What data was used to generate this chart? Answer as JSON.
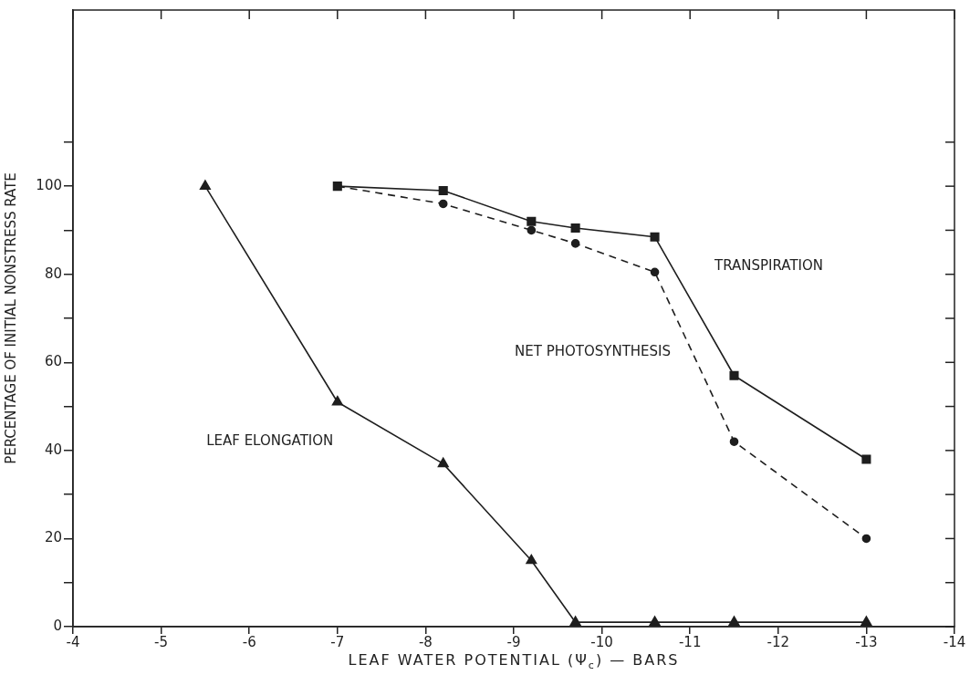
{
  "chart_data": {
    "type": "line",
    "xlabel": "LEAF WATER POTENTIAL (Ψ$_{c}$) — BARS",
    "ylabel": "PERCENTAGE OF INITIAL NONSTRESS RATE",
    "xlim": [
      -4,
      -14
    ],
    "xticks": [
      -4,
      -5,
      -6,
      -7,
      -8,
      -9,
      -10,
      -11,
      -12,
      -13,
      -14
    ],
    "ylim": [
      0,
      140
    ],
    "yticks": [
      0,
      {
        "value": 10,
        "label": null
      },
      20,
      {
        "value": 30,
        "label": null
      },
      40,
      {
        "value": 50,
        "label": null
      },
      60,
      {
        "value": 70,
        "label": null
      },
      80,
      {
        "value": 90,
        "label": null
      },
      100,
      {
        "value": 110,
        "label": null
      }
    ],
    "grid": false,
    "legend": false,
    "line_style": "solid",
    "series": [
      {
        "name": "LEAF ELONGATION",
        "color": "#1e1e1e",
        "marker": "triangle",
        "x": [
          -5.5,
          -7,
          -8.2,
          -9.2,
          -9.7,
          -10.6,
          -11.5,
          -13
        ],
        "values": [
          100,
          51,
          37,
          15,
          1,
          1,
          1,
          1
        ]
      },
      {
        "name": "NET PHOTOSYNTHESIS",
        "color": "#1e1e1e",
        "marker": "circle",
        "line_style": "dashed",
        "x": [
          -7,
          -8.2,
          -9.2,
          -9.7,
          -10.6,
          -11.5,
          -13
        ],
        "values": [
          100,
          96,
          90,
          87,
          80.5,
          42,
          20
        ]
      },
      {
        "name": "TRANSPIRATION",
        "color": "#1e1e1e",
        "marker": "square",
        "x": [
          -7,
          -8.2,
          -9.2,
          -9.7,
          -10.6,
          -11.5,
          -13
        ],
        "values": [
          100,
          99,
          92,
          90.5,
          88.5,
          57,
          38
        ]
      }
    ]
  }
}
